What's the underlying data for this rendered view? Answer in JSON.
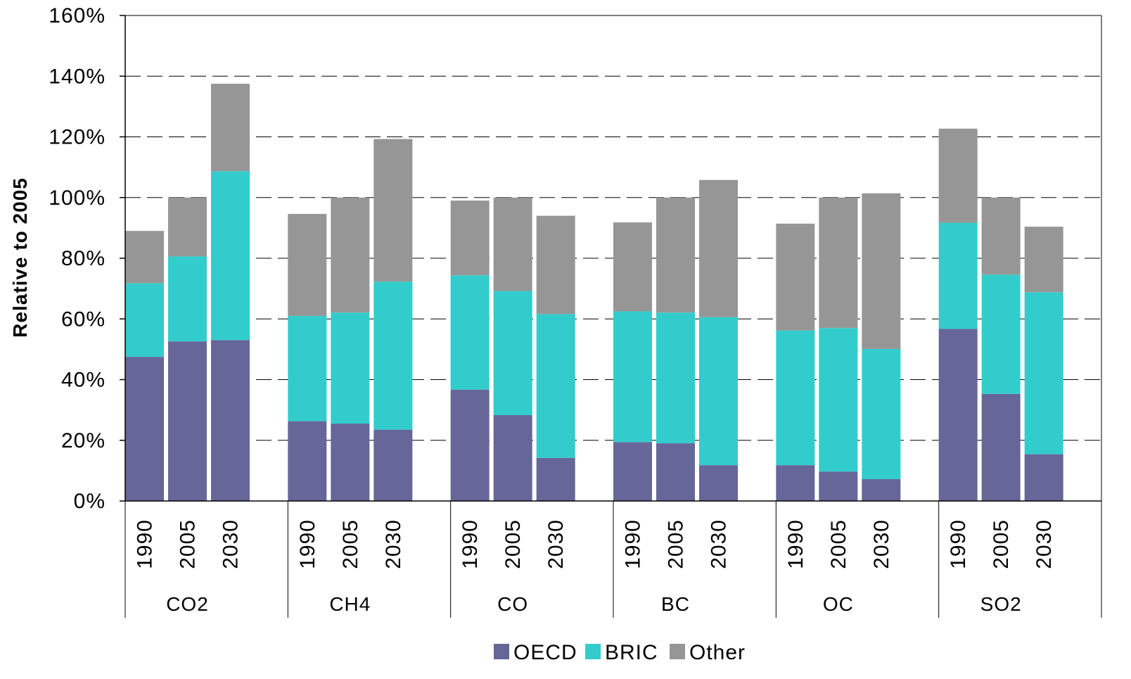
{
  "chart_data": {
    "type": "bar",
    "stacked": true,
    "ylabel": "Relative to 2005",
    "ylim": [
      0,
      160
    ],
    "y_unit": "%",
    "y_ticks": [
      "0%",
      "20%",
      "40%",
      "60%",
      "80%",
      "100%",
      "120%",
      "140%",
      "160%"
    ],
    "grid": "dashed horizontal",
    "legend_position": "bottom",
    "groups": [
      {
        "name": "CO2",
        "bars": [
          {
            "year": "1990",
            "OECD": 47.5,
            "BRIC": 24.3,
            "Other": 17.2
          },
          {
            "year": "2005",
            "OECD": 52.6,
            "BRIC": 28.0,
            "Other": 19.4
          },
          {
            "year": "2030",
            "OECD": 53.0,
            "BRIC": 55.7,
            "Other": 28.8
          }
        ]
      },
      {
        "name": "CH4",
        "bars": [
          {
            "year": "1990",
            "OECD": 26.3,
            "BRIC": 34.7,
            "Other": 33.6
          },
          {
            "year": "2005",
            "OECD": 25.5,
            "BRIC": 36.6,
            "Other": 37.9
          },
          {
            "year": "2030",
            "OECD": 23.5,
            "BRIC": 48.8,
            "Other": 47.0
          }
        ]
      },
      {
        "name": "CO",
        "bars": [
          {
            "year": "1990",
            "OECD": 36.7,
            "BRIC": 37.7,
            "Other": 24.6
          },
          {
            "year": "2005",
            "OECD": 28.3,
            "BRIC": 40.9,
            "Other": 30.8
          },
          {
            "year": "2030",
            "OECD": 14.2,
            "BRIC": 47.4,
            "Other": 32.4
          }
        ]
      },
      {
        "name": "BC",
        "bars": [
          {
            "year": "1990",
            "OECD": 19.4,
            "BRIC": 43.1,
            "Other": 29.3
          },
          {
            "year": "2005",
            "OECD": 19.0,
            "BRIC": 43.1,
            "Other": 37.9
          },
          {
            "year": "2030",
            "OECD": 11.8,
            "BRIC": 48.8,
            "Other": 45.2
          }
        ]
      },
      {
        "name": "OC",
        "bars": [
          {
            "year": "1990",
            "OECD": 11.8,
            "BRIC": 44.4,
            "Other": 35.2
          },
          {
            "year": "2005",
            "OECD": 9.7,
            "BRIC": 47.3,
            "Other": 43.0
          },
          {
            "year": "2030",
            "OECD": 7.2,
            "BRIC": 42.9,
            "Other": 51.3
          }
        ]
      },
      {
        "name": "SO2",
        "bars": [
          {
            "year": "1990",
            "OECD": 56.7,
            "BRIC": 35.0,
            "Other": 31.0
          },
          {
            "year": "2005",
            "OECD": 35.3,
            "BRIC": 39.3,
            "Other": 25.4
          },
          {
            "year": "2030",
            "OECD": 15.4,
            "BRIC": 53.4,
            "Other": 21.6
          }
        ]
      }
    ],
    "series": [
      {
        "name": "OECD",
        "color": "#666699"
      },
      {
        "name": "BRIC",
        "color": "#33CCCC"
      },
      {
        "name": "Other",
        "color": "#969696"
      }
    ]
  }
}
